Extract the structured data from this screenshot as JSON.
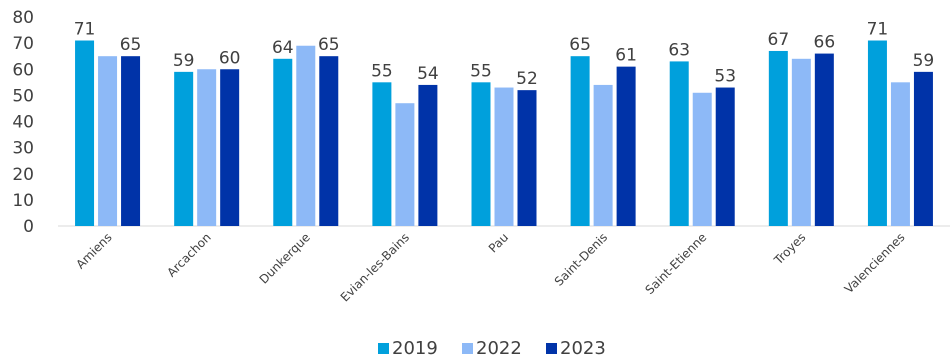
{
  "chart_data": {
    "type": "bar",
    "categories": [
      "Amiens",
      "Arcachon",
      "Dunkerque",
      "Evian-les-Bains",
      "Pau",
      "Saint-Denis",
      "Saint-Etienne",
      "Troyes",
      "Valenciennes"
    ],
    "series": [
      {
        "name": "2019",
        "color": "#00A0DC",
        "values": [
          71,
          59,
          64,
          55,
          55,
          65,
          63,
          67,
          71
        ]
      },
      {
        "name": "2022",
        "color": "#8DB9F7",
        "values": [
          65,
          60,
          69,
          47,
          53,
          54,
          51,
          64,
          55
        ]
      },
      {
        "name": "2023",
        "color": "#0033A8",
        "values": [
          65,
          60,
          65,
          54,
          52,
          61,
          53,
          66,
          59
        ]
      }
    ],
    "data_labels": [
      [
        "71",
        "59",
        "64",
        "55",
        "55",
        "65",
        "63",
        "67",
        "71"
      ],
      [
        "",
        "",
        "",
        "",
        "",
        "",
        "",
        "",
        ""
      ],
      [
        "65",
        "60",
        "65",
        "54",
        "52",
        "61",
        "53",
        "66",
        "59"
      ]
    ],
    "y_ticks": [
      "0",
      "10",
      "20",
      "30",
      "40",
      "50",
      "60",
      "70",
      "80"
    ],
    "ylim": [
      0,
      80
    ],
    "legend_position": "bottom",
    "grid": false
  }
}
